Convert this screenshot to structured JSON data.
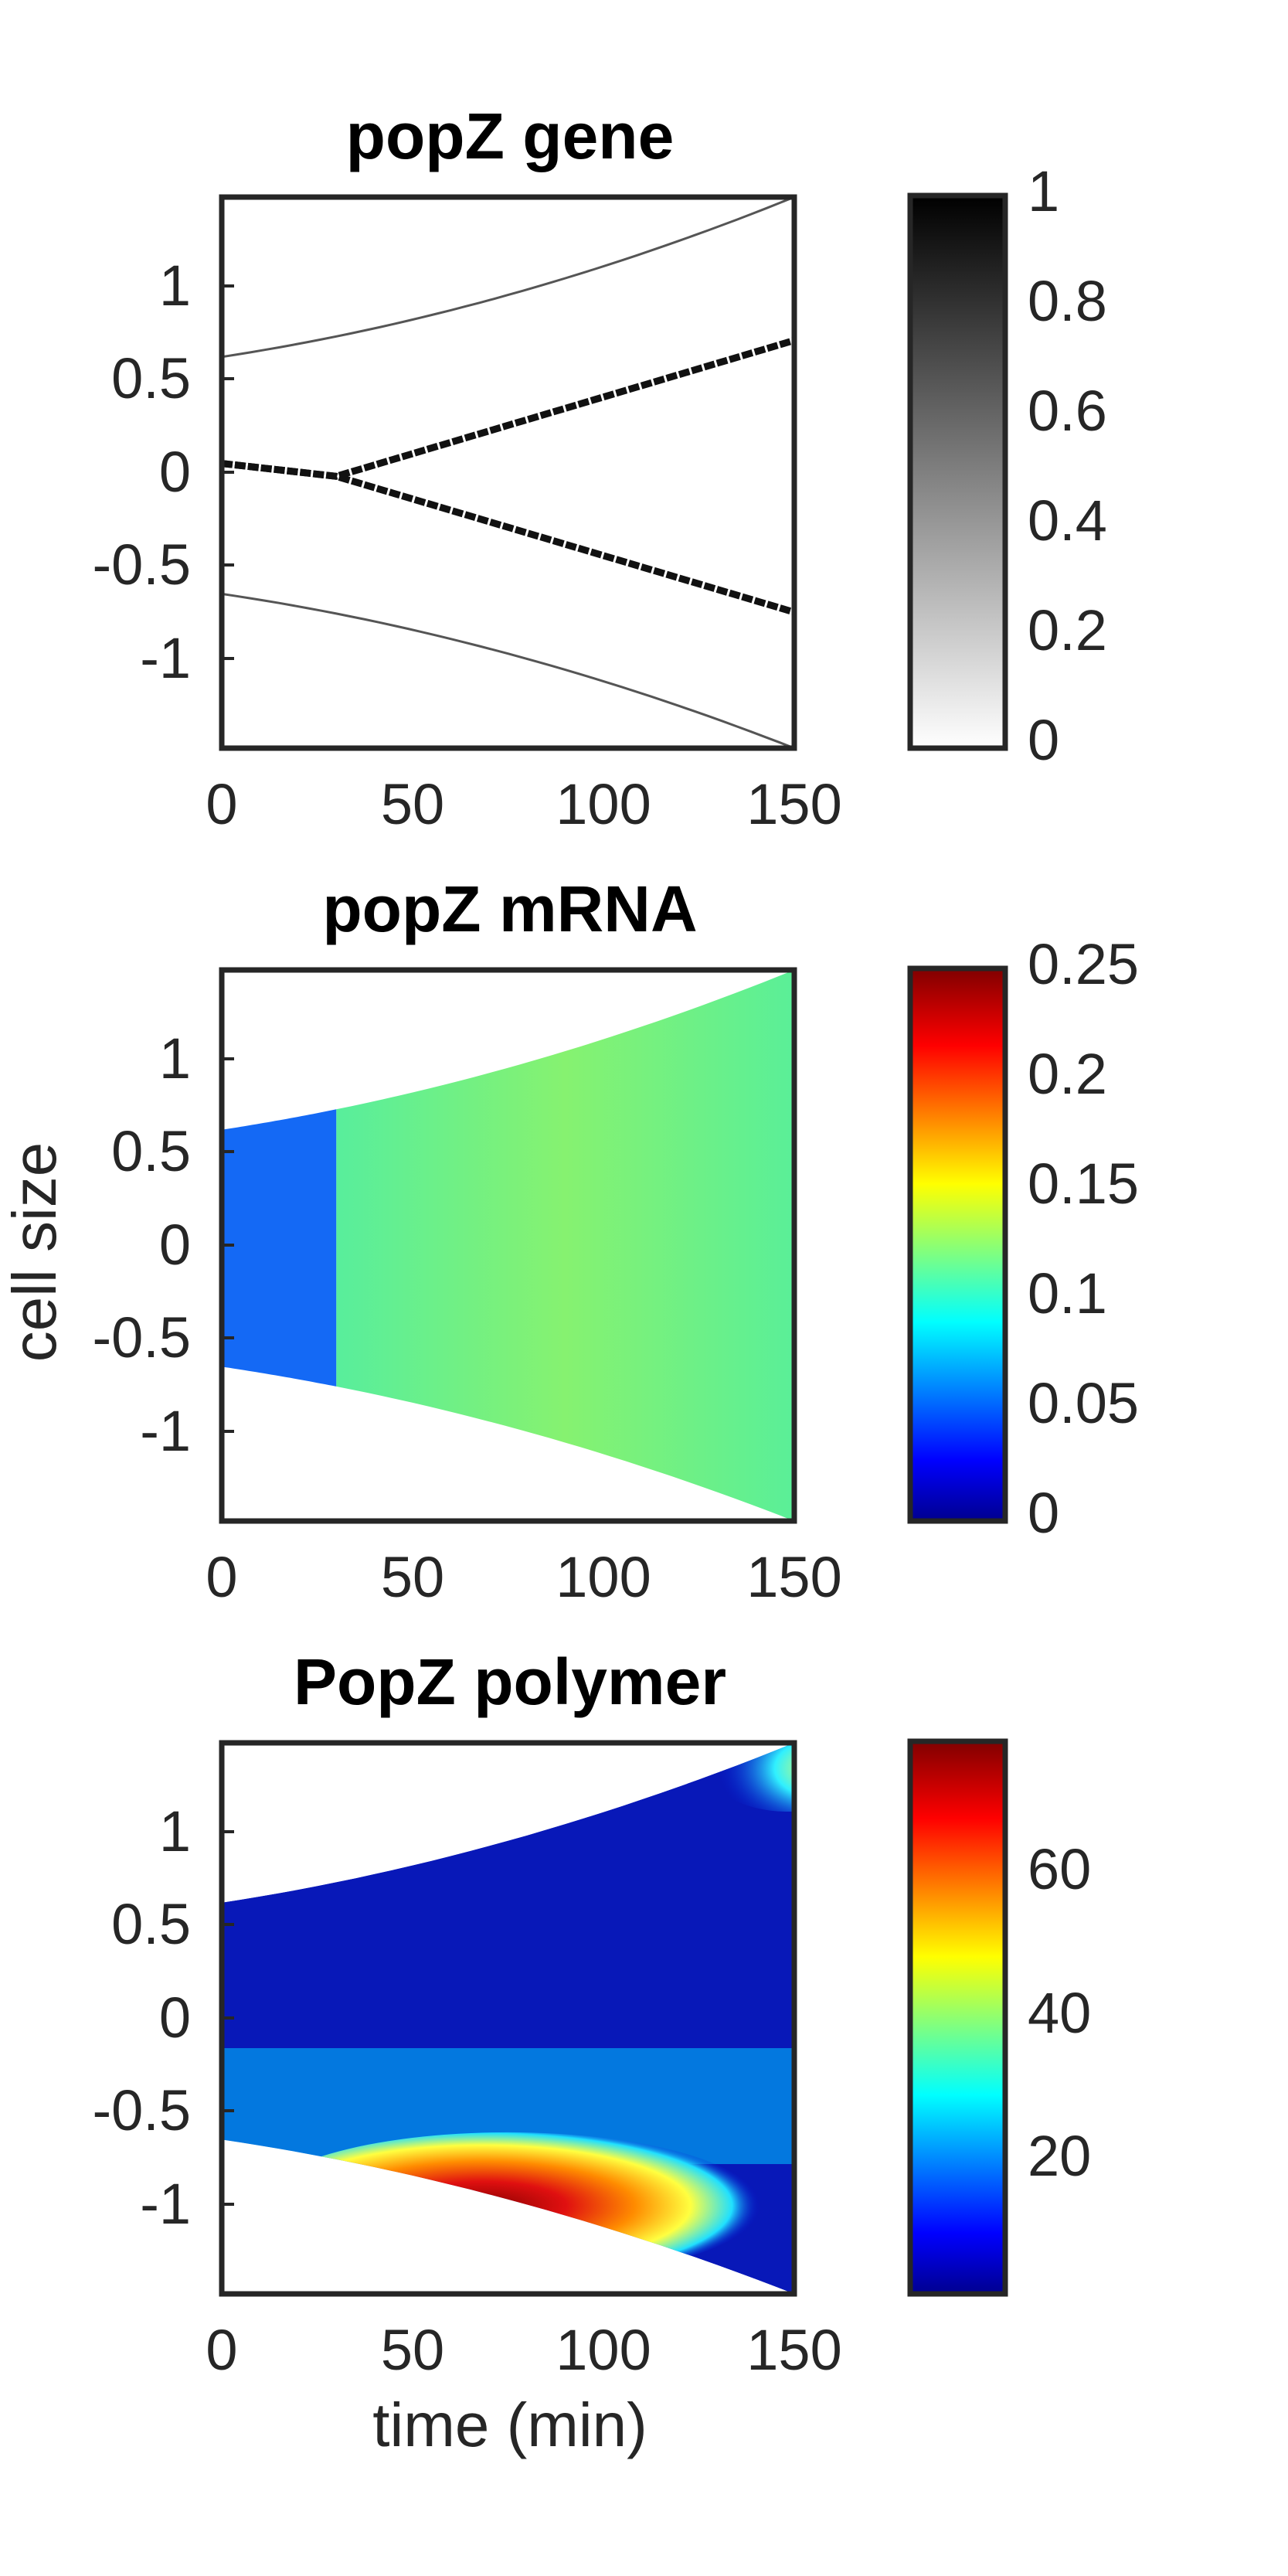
{
  "figure": {
    "ylabel": "cell size",
    "xlabel": "time (min)"
  },
  "chart_data": [
    {
      "type": "heatmap",
      "title": "popZ gene",
      "x_ticks": [
        0,
        50,
        100,
        150
      ],
      "y_ticks": [
        1,
        0.5,
        0,
        -0.5,
        -1
      ],
      "xlim": [
        0,
        150
      ],
      "ylim": [
        -1.5,
        1.5
      ],
      "colormap": "gray",
      "colorbar_ticks": [
        1,
        0.8,
        0.6,
        0.4,
        0.2,
        0
      ],
      "colorbar_range": [
        0,
        1
      ],
      "cell_boundary": {
        "t": [
          0,
          150
        ],
        "top": [
          0.63,
          1.5
        ],
        "bottom": [
          -0.66,
          -1.5
        ]
      },
      "gene_tracks": [
        {
          "t": [
            0,
            30,
            150
          ],
          "y": [
            0.05,
            -0.02,
            0.72
          ]
        },
        {
          "t": [
            0,
            30,
            150
          ],
          "y": [
            0.05,
            -0.02,
            -0.76
          ]
        }
      ]
    },
    {
      "type": "heatmap",
      "title": "popZ mRNA",
      "x_ticks": [
        0,
        50,
        100,
        150
      ],
      "y_ticks": [
        1,
        0.5,
        0,
        -0.5,
        -1
      ],
      "xlim": [
        0,
        150
      ],
      "ylim": [
        -1.5,
        1.5
      ],
      "colormap": "jet",
      "colorbar_ticks": [
        0.25,
        0.2,
        0.15,
        0.1,
        0.05,
        0
      ],
      "colorbar_range": [
        0,
        0.25
      ],
      "cell_boundary": {
        "t": [
          0,
          30,
          150
        ],
        "top": [
          0.63,
          0.76,
          1.5
        ],
        "bottom": [
          -0.66,
          -0.79,
          -1.5
        ]
      },
      "fill_values": {
        "t": [
          0,
          30,
          150
        ],
        "value": [
          0.045,
          0.12,
          0.115
        ]
      }
    },
    {
      "type": "heatmap",
      "title": "PopZ polymer",
      "x_ticks": [
        0,
        50,
        100,
        150
      ],
      "y_ticks": [
        1,
        0.5,
        0,
        -0.5,
        -1
      ],
      "xlim": [
        0,
        150
      ],
      "ylim": [
        -1.5,
        1.5
      ],
      "colormap": "jet",
      "colorbar_ticks": [
        60,
        40,
        20
      ],
      "colorbar_range": [
        1,
        78
      ],
      "cell_boundary": {
        "t": [
          0,
          150
        ],
        "top": [
          0.63,
          1.5
        ],
        "bottom": [
          -0.66,
          -1.5
        ]
      },
      "background_value": 3,
      "hot_spots": [
        {
          "t": [
            30,
            150
          ],
          "y": [
            -0.78,
            -1.5
          ],
          "peak_value": 78
        },
        {
          "t": [
            140,
            150
          ],
          "y": [
            1.35,
            1.48
          ],
          "peak_value": 42
        }
      ]
    }
  ]
}
